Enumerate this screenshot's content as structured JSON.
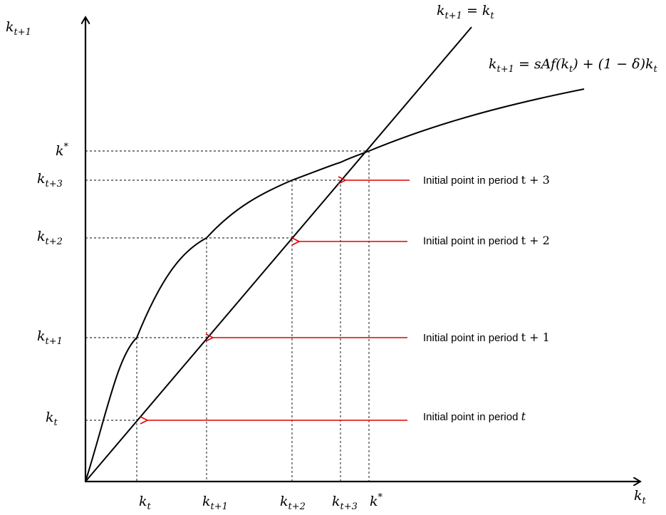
{
  "axes": {
    "y_label": {
      "base": "k",
      "sub": "t+1"
    },
    "x_label": {
      "base": "k",
      "sub": "t"
    }
  },
  "curves": {
    "identity_label": {
      "lhs_base": "k",
      "lhs_sub": "t+1",
      "eq": " = ",
      "rhs_base": "k",
      "rhs_sub": "t"
    },
    "law_of_motion_label": {
      "lhs_base": "k",
      "lhs_sub": "t+1",
      "rhs_a": " = sAf(k",
      "rhs_a_sub": "t",
      "rhs_b": ") + (1 − δ)k",
      "rhs_b_sub": "t"
    }
  },
  "y_ticks": [
    {
      "base": "k",
      "sup": "*",
      "sub": ""
    },
    {
      "base": "k",
      "sup": "",
      "sub": "t+3"
    },
    {
      "base": "k",
      "sup": "",
      "sub": "t+2"
    },
    {
      "base": "k",
      "sup": "",
      "sub": "t+1"
    },
    {
      "base": "k",
      "sup": "",
      "sub": "t"
    }
  ],
  "x_ticks": [
    {
      "base": "k",
      "sup": "",
      "sub": "t"
    },
    {
      "base": "k",
      "sup": "",
      "sub": "t+1"
    },
    {
      "base": "k",
      "sup": "",
      "sub": "t+2"
    },
    {
      "base": "k",
      "sup": "",
      "sub": "t+3"
    },
    {
      "base": "k",
      "sup": "*",
      "sub": ""
    }
  ],
  "annotations": [
    {
      "text": "Initial point in period ",
      "math": "t + 3"
    },
    {
      "text": "Initial point in period ",
      "math": "t + 2"
    },
    {
      "text": "Initial point in period ",
      "math": "t + 1"
    },
    {
      "text": "Initial point in period ",
      "math": "t"
    }
  ],
  "colors": {
    "arrow": "#e00000",
    "ink": "#000000"
  }
}
